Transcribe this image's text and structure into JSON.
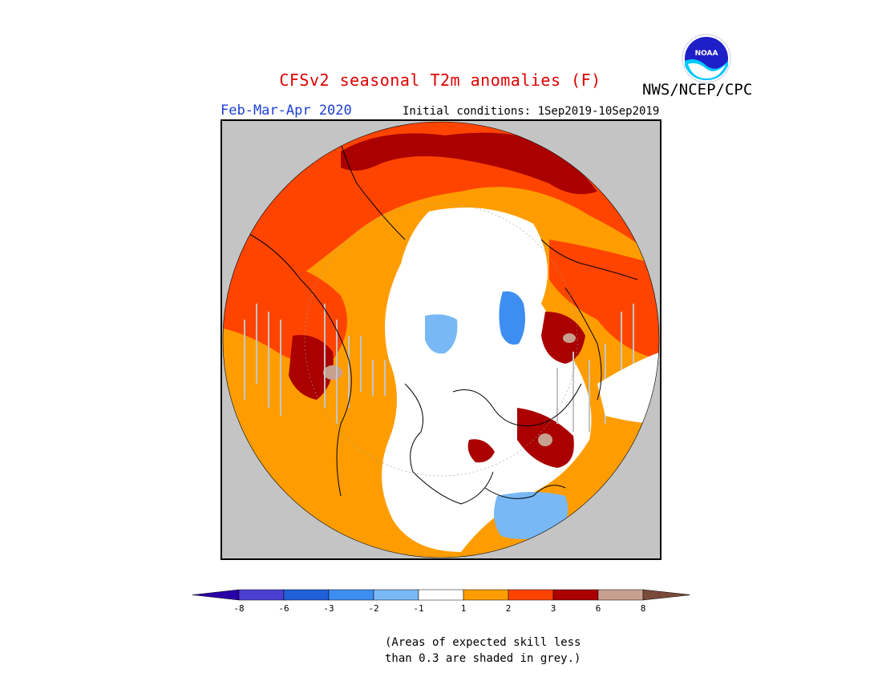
{
  "header": {
    "title": "CFSv2 seasonal T2m anomalies (F)",
    "agency": "NWS/NCEP/CPC",
    "logo_text": "NOAA",
    "season": "Feb-Mar-Apr 2020",
    "initial_conditions": "Initial conditions: 1Sep2019-10Sep2019"
  },
  "legend": {
    "tick_labels": [
      "-8",
      "-6",
      "-3",
      "-2",
      "-1",
      "1",
      "2",
      "3",
      "6",
      "8"
    ],
    "colors": [
      "#2a00a8",
      "#4a3fd0",
      "#2060d8",
      "#3d8ef0",
      "#78b8f5",
      "#ffffff",
      "#ff9d00",
      "#ff4400",
      "#aa0000",
      "#c8a090",
      "#7a4a3a"
    ]
  },
  "note": {
    "line1": "(Areas of expected skill less",
    "line2": "than 0.3 are shaded in grey.)"
  },
  "colors": {
    "title": "#e00000",
    "season": "#1a3fd8",
    "skill_grey": "#c4c4c4",
    "cat_pos1": "#ff9d00",
    "cat_pos2": "#ff4400",
    "cat_pos3": "#aa0000",
    "cat_pos4": "#c8a090",
    "cat_neg1": "#78b8f5",
    "cat_neg2": "#3d8ef0"
  }
}
